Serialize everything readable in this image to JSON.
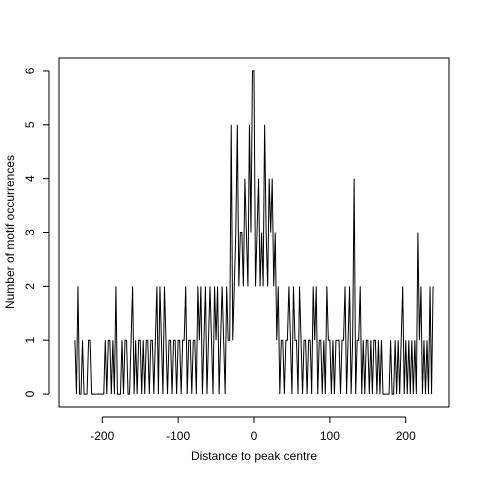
{
  "chart_data": {
    "type": "line",
    "xlabel": "Distance to peak centre",
    "ylabel": "Number of motif occurrences",
    "color": "#000000",
    "xlim": [
      -257,
      257
    ],
    "ylim": [
      -0.24,
      6.24
    ],
    "xticks": [
      -200,
      -100,
      0,
      100,
      200
    ],
    "yticks": [
      0,
      1,
      2,
      3,
      4,
      5,
      6
    ],
    "x": [
      -236,
      -234,
      -232,
      -230,
      -228,
      -226,
      -224,
      -222,
      -220,
      -218,
      -216,
      -214,
      -212,
      -210,
      -208,
      -206,
      -204,
      -202,
      -200,
      -198,
      -196,
      -194,
      -192,
      -190,
      -188,
      -186,
      -184,
      -182,
      -180,
      -178,
      -176,
      -174,
      -172,
      -170,
      -168,
      -166,
      -164,
      -162,
      -160,
      -158,
      -156,
      -154,
      -152,
      -150,
      -148,
      -146,
      -144,
      -142,
      -140,
      -138,
      -136,
      -134,
      -132,
      -130,
      -128,
      -126,
      -124,
      -122,
      -120,
      -118,
      -116,
      -114,
      -112,
      -110,
      -108,
      -106,
      -104,
      -102,
      -100,
      -98,
      -96,
      -94,
      -92,
      -90,
      -88,
      -86,
      -84,
      -82,
      -80,
      -78,
      -76,
      -74,
      -72,
      -70,
      -68,
      -66,
      -64,
      -62,
      -60,
      -58,
      -56,
      -54,
      -52,
      -50,
      -48,
      -46,
      -44,
      -42,
      -40,
      -38,
      -36,
      -34,
      -32,
      -30,
      -28,
      -26,
      -24,
      -22,
      -20,
      -18,
      -16,
      -14,
      -12,
      -10,
      -8,
      -6,
      -4,
      -2,
      0,
      2,
      4,
      6,
      8,
      10,
      12,
      14,
      16,
      18,
      20,
      22,
      24,
      26,
      28,
      30,
      32,
      34,
      36,
      38,
      40,
      42,
      44,
      46,
      48,
      50,
      52,
      54,
      56,
      58,
      60,
      62,
      64,
      66,
      68,
      70,
      72,
      74,
      76,
      78,
      80,
      82,
      84,
      86,
      88,
      90,
      92,
      94,
      96,
      98,
      100,
      102,
      104,
      106,
      108,
      110,
      112,
      114,
      116,
      118,
      120,
      122,
      124,
      126,
      128,
      130,
      132,
      134,
      136,
      138,
      140,
      142,
      144,
      146,
      148,
      150,
      152,
      154,
      156,
      158,
      160,
      162,
      164,
      166,
      168,
      170,
      172,
      174,
      176,
      178,
      180,
      182,
      184,
      186,
      188,
      190,
      192,
      194,
      196,
      198,
      200,
      202,
      204,
      206,
      208,
      210,
      212,
      214,
      216,
      218,
      220,
      222,
      224,
      226,
      228,
      230,
      232,
      234,
      236
    ],
    "values": [
      1,
      0,
      2,
      0,
      0,
      1,
      0,
      0,
      0,
      1,
      1,
      0,
      0,
      0,
      0,
      0,
      0,
      0,
      0,
      0,
      1,
      0,
      1,
      1,
      0,
      1,
      0,
      2,
      0,
      0,
      0,
      1,
      0,
      1,
      1,
      0,
      0,
      1,
      2,
      0,
      1,
      0,
      1,
      1,
      0,
      1,
      0,
      1,
      1,
      0,
      1,
      1,
      0,
      1,
      2,
      0,
      2,
      1,
      0,
      2,
      1,
      0,
      1,
      1,
      0,
      1,
      1,
      0,
      1,
      1,
      0,
      1,
      1,
      2,
      0,
      1,
      1,
      0,
      1,
      1,
      0,
      2,
      1,
      2,
      0,
      1,
      2,
      0,
      1,
      2,
      1,
      0,
      2,
      1,
      2,
      0,
      1,
      2,
      1,
      0,
      2,
      1,
      1,
      5,
      1,
      2,
      3,
      5,
      2,
      3,
      3,
      2,
      4,
      3,
      2,
      5,
      3,
      6,
      6,
      2,
      3,
      4,
      2,
      3,
      2,
      5,
      3,
      2,
      4,
      3,
      4,
      2,
      3,
      1,
      2,
      0,
      1,
      1,
      0,
      1,
      1,
      2,
      1,
      0,
      2,
      1,
      1,
      0,
      2,
      1,
      0,
      1,
      1,
      0,
      1,
      1,
      0,
      2,
      1,
      2,
      0,
      1,
      1,
      0,
      1,
      0,
      2,
      1,
      1,
      0,
      1,
      0,
      1,
      1,
      1,
      0,
      1,
      1,
      2,
      0,
      1,
      2,
      0,
      1,
      4,
      0,
      1,
      1,
      2,
      0,
      1,
      0,
      1,
      1,
      0,
      1,
      0,
      1,
      1,
      0,
      1,
      0,
      1,
      0,
      0,
      0,
      0,
      0,
      1,
      0,
      0,
      1,
      0,
      1,
      0,
      1,
      2,
      0,
      1,
      0,
      1,
      0,
      1,
      0,
      1,
      0,
      3,
      1,
      2,
      0,
      1,
      0,
      1,
      0,
      2,
      0,
      2
    ]
  }
}
